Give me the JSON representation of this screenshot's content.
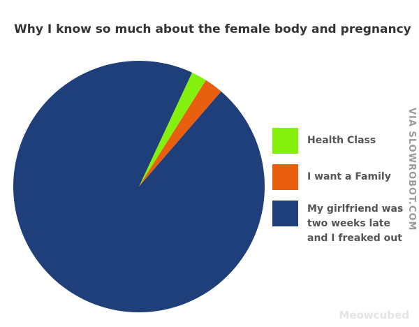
{
  "chart_data": {
    "type": "pie",
    "title": "Why I know so much about the female body and pregnancy",
    "categories": [
      "Health Class",
      "I want a Family",
      "My girlfriend was two weeks late and I freaked out"
    ],
    "values": [
      2,
      2.4,
      95.6
    ],
    "colors": [
      "#84f00e",
      "#e8600f",
      "#1f3f7b"
    ],
    "watermark": "VIA SLOWROBOT.COM",
    "credit": "Meowcubed"
  }
}
